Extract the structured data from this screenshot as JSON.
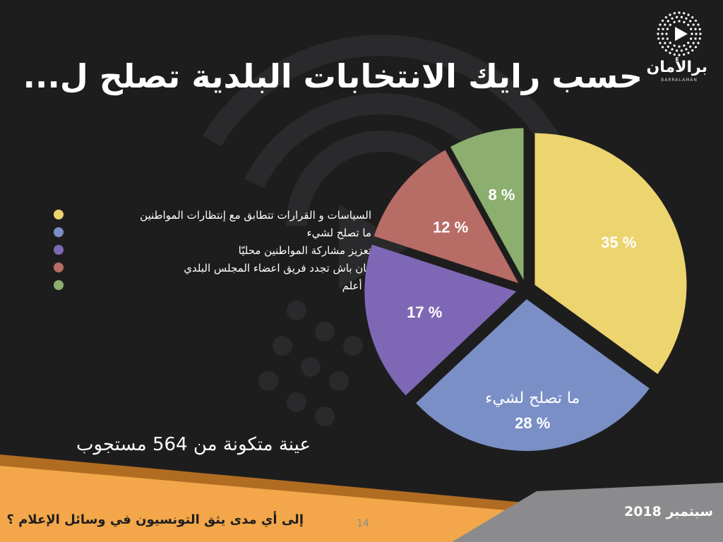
{
  "slide": {
    "title": "حسب رايك الانتخابات البلدية تصلح ل...",
    "sample_note": "عينة متكونة من 564 مستجوب",
    "page_number": "14"
  },
  "logo": {
    "name": "برالأمان",
    "subtitle": "BARRALAMAN"
  },
  "footer": {
    "question": "إلى أي مدى يثق التونسيون في وسائل الإعلام ؟",
    "date": "سبتمبر 2018"
  },
  "colors": {
    "background": "#1e1d1e",
    "footer_orange": "#f3a74a",
    "footer_grey": "#8b8b8e"
  },
  "chart_data": {
    "type": "pie",
    "title": "حسب رايك الانتخابات البلدية تصلح ل...",
    "legend_position": "left",
    "slices": [
      {
        "name": "السياسات و القرارات تتطابق مع إنتظارات المواطنين",
        "value": 35,
        "label": "35 %",
        "color": "#ecd46f"
      },
      {
        "name": "ما تصلح لشيء",
        "value": 28,
        "label": "28 %",
        "callout": "ما تصلح لشيء",
        "color": "#7a8fc6"
      },
      {
        "name": "تعزيز مشاركة المواطنين محليّا",
        "value": 17,
        "label": "17 %",
        "color": "#7e68b6"
      },
      {
        "name": "كان باش تجدد فريق اعضاء المجلس البلدي",
        "value": 12,
        "label": "12 %",
        "color": "#b86c66"
      },
      {
        "name": "لا أعلم",
        "value": 8,
        "label": "8 %",
        "color": "#8cae6e"
      }
    ]
  }
}
